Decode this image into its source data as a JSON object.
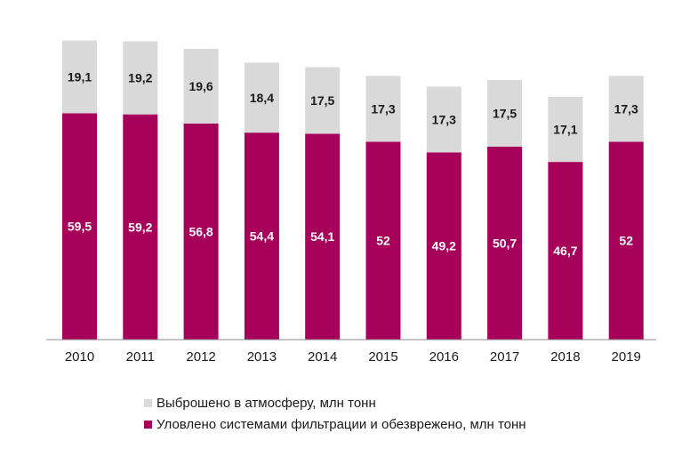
{
  "chart_data": {
    "type": "bar",
    "stacked": true,
    "categories": [
      "2010",
      "2011",
      "2012",
      "2013",
      "2014",
      "2015",
      "2016",
      "2017",
      "2018",
      "2019"
    ],
    "series": [
      {
        "name": "Уловлено системами фильтрации и обезврежено, млн тонн",
        "color": "#a7005a",
        "values": [
          59.5,
          59.2,
          56.8,
          54.4,
          54.1,
          52,
          49.2,
          50.7,
          46.7,
          52
        ],
        "labels": [
          "59,5",
          "59,2",
          "56,8",
          "54,4",
          "54,1",
          "52",
          "49,2",
          "50,7",
          "46,7",
          "52"
        ]
      },
      {
        "name": "Выброшено в атмосферу, млн тонн",
        "color": "#d9d9d9",
        "values": [
          19.1,
          19.2,
          19.6,
          18.4,
          17.5,
          17.3,
          17.3,
          17.5,
          17.1,
          17.3
        ],
        "labels": [
          "19,1",
          "19,2",
          "19,6",
          "18,4",
          "17,5",
          "17,3",
          "17,3",
          "17,5",
          "17,1",
          "17,3"
        ]
      }
    ],
    "ylim": [
      0,
      80
    ],
    "grid": false,
    "legend": "bottom"
  }
}
